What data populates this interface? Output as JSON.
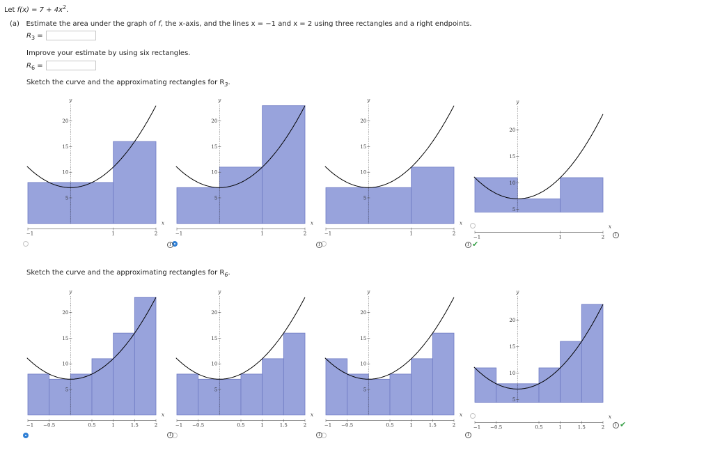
{
  "problem": {
    "intro": "Let",
    "function_tex": "f(x) = 7 + 4x",
    "exponent": "2",
    "end": ".",
    "part_a_label": "(a)",
    "part_a_text": "Estimate the area under the graph of",
    "part_a_text_f": "f",
    "part_a_text_rest": ", the x-axis, and the lines x = −1 and x = 2 using three rectangles and a right endpoints.",
    "r3_label": "R",
    "r3_sub": "3",
    "r3_eq": " =",
    "r3_value": "",
    "improve_text": "Improve your estimate by using six rectangles.",
    "r6_label": "R",
    "r6_sub": "6",
    "r6_eq": " =",
    "r6_value": "",
    "sketch3_text": "Sketch the curve and the approximating rectangles for R",
    "sketch3_sub": "3",
    "sketch3_end": ".",
    "sketch6_text": "Sketch the curve and the approximating rectangles for R",
    "sketch6_sub": "6",
    "sketch6_end": "."
  },
  "colors": {
    "rect_fill": "#98a3dc",
    "rect_stroke": "#6e7ac4",
    "curve": "#000000",
    "radio_selected": "#2f7fd5",
    "check": "#3aa14a"
  },
  "info_glyph": "i",
  "check_glyph": "✔",
  "chart_data": [
    {
      "type": "area",
      "label": "R3 option 1",
      "sample": "midpoint",
      "n": 3,
      "xrange": [
        -1,
        2
      ],
      "yrange": [
        0,
        23
      ],
      "xticks": [
        "-1",
        "1",
        "2"
      ],
      "yticks": [
        "5",
        "10",
        "15",
        "20"
      ],
      "xlabel": "x",
      "ylabel": "y",
      "heights": [
        8,
        8,
        16
      ],
      "selected": false,
      "correct": false
    },
    {
      "type": "area",
      "label": "R3 option 2",
      "sample": "right",
      "n": 3,
      "xrange": [
        -1,
        2
      ],
      "yrange": [
        0,
        23
      ],
      "xticks": [
        "-1",
        "1",
        "2"
      ],
      "yticks": [
        "5",
        "10",
        "15",
        "20"
      ],
      "xlabel": "x",
      "ylabel": "y",
      "heights": [
        7,
        11,
        23
      ],
      "selected": true,
      "correct": false
    },
    {
      "type": "area",
      "label": "R3 option 3",
      "sample": "left",
      "n": 3,
      "xrange": [
        -1,
        2
      ],
      "yrange": [
        0,
        23
      ],
      "xticks": [
        "-1",
        "1",
        "2"
      ],
      "yticks": [
        "5",
        "10",
        "15",
        "20"
      ],
      "xlabel": "x",
      "ylabel": "y",
      "heights": [
        7,
        7,
        11
      ],
      "selected": false,
      "correct": true
    },
    {
      "type": "area",
      "label": "R3 option 4",
      "sample": "left",
      "n": 3,
      "xrange": [
        -1,
        2
      ],
      "yrange": [
        0,
        23
      ],
      "xticks": [
        "-1",
        "1",
        "2"
      ],
      "yticks": [
        "5",
        "10",
        "15",
        "20"
      ],
      "xlabel": "x",
      "ylabel": "y",
      "heights": [
        11,
        7,
        11
      ],
      "selected": false,
      "correct": false
    },
    {
      "type": "area",
      "label": "R6 option 1",
      "sample": "right",
      "n": 6,
      "xrange": [
        -1,
        2
      ],
      "yrange": [
        0,
        23
      ],
      "xticks": [
        "-1",
        "-0.5",
        "0.5",
        "1",
        "1.5",
        "2"
      ],
      "yticks": [
        "5",
        "10",
        "15",
        "20"
      ],
      "xlabel": "x",
      "ylabel": "y",
      "heights": [
        8,
        7,
        8,
        11,
        16,
        23
      ],
      "selected": true,
      "correct": false
    },
    {
      "type": "area",
      "label": "R6 option 2",
      "sample": "right",
      "n": 6,
      "xrange": [
        -1,
        2
      ],
      "yrange": [
        0,
        23
      ],
      "xticks": [
        "-1",
        "-0.5",
        "0.5",
        "1",
        "1.5",
        "2"
      ],
      "yticks": [
        "5",
        "10",
        "15",
        "20"
      ],
      "xlabel": "x",
      "ylabel": "y",
      "heights": [
        8,
        7,
        7,
        8,
        11,
        16
      ],
      "selected": false,
      "correct": false
    },
    {
      "type": "area",
      "label": "R6 option 3",
      "sample": "left",
      "n": 6,
      "xrange": [
        -1,
        2
      ],
      "yrange": [
        0,
        23
      ],
      "xticks": [
        "-1",
        "-0.5",
        "0.5",
        "1",
        "1.5",
        "2"
      ],
      "yticks": [
        "5",
        "10",
        "15",
        "20"
      ],
      "xlabel": "x",
      "ylabel": "y",
      "heights": [
        11,
        8,
        7,
        8,
        11,
        16
      ],
      "selected": false,
      "correct": false
    },
    {
      "type": "area",
      "label": "R6 option 4",
      "sample": "left",
      "n": 6,
      "xrange": [
        -1,
        2
      ],
      "yrange": [
        0,
        23
      ],
      "xticks": [
        "-1",
        "-0.5",
        "0.5",
        "1",
        "1.5",
        "2"
      ],
      "yticks": [
        "5",
        "10",
        "15",
        "20"
      ],
      "xlabel": "x",
      "ylabel": "y",
      "heights": [
        11,
        8,
        8,
        11,
        16,
        23
      ],
      "selected": false,
      "correct": true
    }
  ]
}
